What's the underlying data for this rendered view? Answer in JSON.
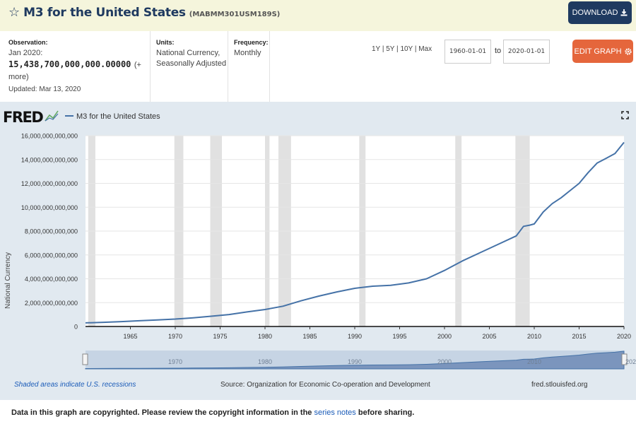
{
  "header": {
    "title": "M3 for the United States",
    "series_id": "(MABMM301USM189S)",
    "download_label": "DOWNLOAD"
  },
  "meta": {
    "observation_label": "Observation:",
    "observation_date": "Jan 2020:",
    "observation_value": "15,438,700,000,000.00000",
    "observation_more": "(+ more)",
    "updated": "Updated: Mar 13, 2020",
    "units_label": "Units:",
    "units_value": "National Currency, Seasonally Adjusted",
    "frequency_label": "Frequency:",
    "frequency_value": "Monthly"
  },
  "controls": {
    "ranges": [
      "1Y",
      "5Y",
      "10Y",
      "Max"
    ],
    "start_date": "1960-01-01",
    "to_label": "to",
    "end_date": "2020-01-01",
    "edit_label": "EDIT GRAPH"
  },
  "graph": {
    "logo": "FRED",
    "legend_label": "M3 for the United States",
    "shaded_note": "Shaded areas indicate U.S. recessions",
    "source": "Source: Organization for Economic Co-operation and Development",
    "site": "fred.stlouisfed.org",
    "navigator_ticks": [
      "1970",
      "1980",
      "1990",
      "2000",
      "2010",
      "202"
    ],
    "line_color": "#4572a7",
    "panel_color": "#e1e9f0",
    "recession_color": "#e1e1e1"
  },
  "footer": {
    "note_prefix": "Data in this graph are copyrighted. Please review the copyright information in the ",
    "note_link": "series notes",
    "note_suffix": " before sharing."
  },
  "chart_data": {
    "type": "line",
    "title": "M3 for the United States",
    "xlabel": "",
    "ylabel": "National Currency",
    "xlim": [
      1960,
      2020
    ],
    "ylim": [
      0,
      16000000000000
    ],
    "x_ticks": [
      1965,
      1970,
      1975,
      1980,
      1985,
      1990,
      1995,
      2000,
      2005,
      2010,
      2015,
      2020
    ],
    "y_ticks": [
      0,
      2000000000000,
      4000000000000,
      6000000000000,
      8000000000000,
      10000000000000,
      12000000000000,
      14000000000000,
      16000000000000
    ],
    "y_tick_labels": [
      "0",
      "2,000,000,000,000",
      "4,000,000,000,000",
      "6,000,000,000,000",
      "8,000,000,000,000",
      "10,000,000,000,000",
      "12,000,000,000,000",
      "14,000,000,000,000",
      "16,000,000,000,000"
    ],
    "grid": "horizontal",
    "legend": "top-left",
    "recessions": [
      [
        1960.3,
        1961.1
      ],
      [
        1969.9,
        1970.9
      ],
      [
        1973.9,
        1975.2
      ],
      [
        1980.0,
        1980.5
      ],
      [
        1981.5,
        1982.9
      ],
      [
        1990.5,
        1991.2
      ],
      [
        2001.2,
        2001.9
      ],
      [
        2007.9,
        2009.5
      ]
    ],
    "series": [
      {
        "name": "M3 for the United States",
        "x": [
          1960,
          1962,
          1964,
          1966,
          1968,
          1970,
          1972,
          1974,
          1976,
          1978,
          1980,
          1982,
          1984,
          1986,
          1988,
          1990,
          1992,
          1994,
          1996,
          1998,
          2000,
          2002,
          2004,
          2006,
          2008,
          2008.8,
          2009.5,
          2010,
          2011,
          2012,
          2013,
          2014,
          2015,
          2016,
          2017,
          2018,
          2019,
          2020
        ],
        "y": [
          300000000000,
          350000000000,
          410000000000,
          480000000000,
          550000000000,
          620000000000,
          730000000000,
          860000000000,
          1000000000000,
          1220000000000,
          1420000000000,
          1700000000000,
          2150000000000,
          2550000000000,
          2900000000000,
          3200000000000,
          3380000000000,
          3450000000000,
          3650000000000,
          4000000000000,
          4700000000000,
          5500000000000,
          6200000000000,
          6900000000000,
          7600000000000,
          8400000000000,
          8500000000000,
          8600000000000,
          9600000000000,
          10300000000000,
          10800000000000,
          11400000000000,
          12000000000000,
          12900000000000,
          13700000000000,
          14100000000000,
          14500000000000,
          15438700000000
        ]
      }
    ]
  }
}
